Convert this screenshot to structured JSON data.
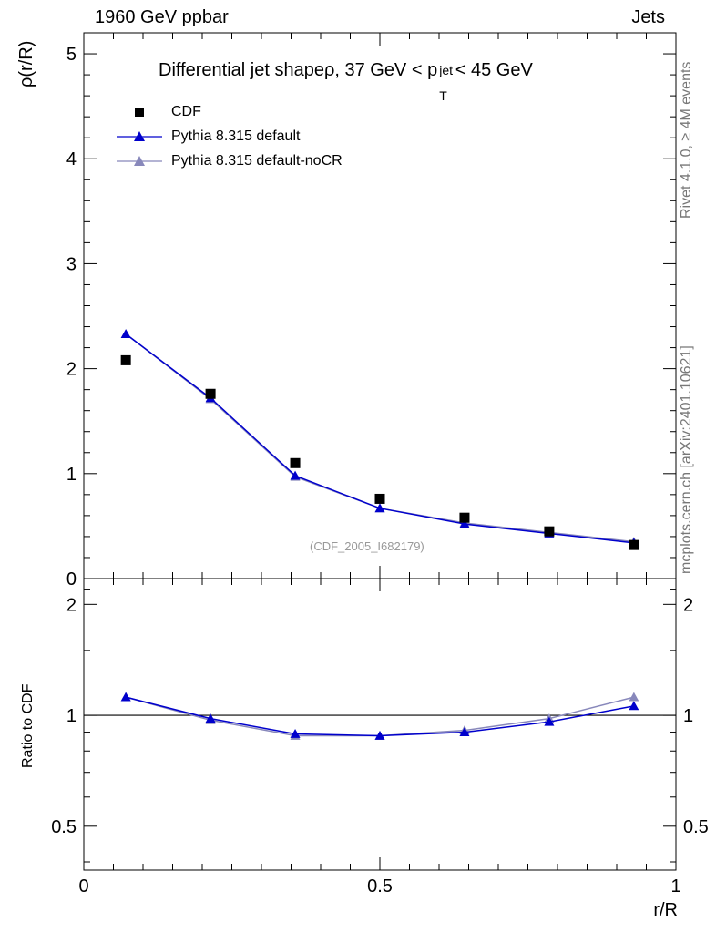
{
  "header": {
    "left": "1960 GeV ppbar",
    "right": "Jets"
  },
  "title": {
    "prefix": "Differential jet shapeρ, 37 GeV < p",
    "sup": "jet",
    "sub": "T",
    "suffix": " < 45 GeV"
  },
  "side_labels": {
    "upper": "Rivet 4.1.0, ≥ 4M events",
    "lower": "mcplots.cern.ch [arXiv:2401.10621]"
  },
  "watermark": "(CDF_2005_I682179)",
  "colors": {
    "data": "#000000",
    "pythia_default": "#0000cc",
    "pythia_nocr": "#8888bb"
  },
  "chart_data": [
    {
      "type": "scatter",
      "ylabel": "ρ(r/R)",
      "xlabel": "r/R",
      "xlim": [
        0,
        1
      ],
      "ylim": [
        0,
        5.2
      ],
      "y_ticks": [
        0,
        1,
        2,
        3,
        4,
        5
      ],
      "y_tick_labels": [
        "0",
        "1",
        "2",
        "3",
        "4",
        "5"
      ],
      "x": [
        0.071,
        0.214,
        0.357,
        0.5,
        0.643,
        0.786,
        0.929
      ],
      "series": [
        {
          "name": "CDF",
          "marker": "square",
          "values": [
            2.08,
            1.76,
            1.1,
            0.76,
            0.58,
            0.45,
            0.32
          ]
        },
        {
          "name": "Pythia 8.315 default",
          "marker": "triangle",
          "values": [
            2.33,
            1.72,
            0.98,
            0.67,
            0.52,
            0.43,
            0.34
          ]
        },
        {
          "name": "Pythia 8.315 default-noCR",
          "marker": "triangle",
          "values": [
            2.33,
            1.71,
            0.97,
            0.67,
            0.53,
            0.44,
            0.35
          ]
        }
      ]
    },
    {
      "type": "line",
      "ylabel": "Ratio to CDF",
      "xlabel": "r/R",
      "xlim": [
        0,
        1
      ],
      "x_ticks": [
        0,
        0.5,
        1
      ],
      "x_tick_labels": [
        "0",
        "0.5",
        "1"
      ],
      "y_scale": "log",
      "ylim": [
        0.38,
        2.35
      ],
      "y_ticks": [
        0.5,
        1,
        2
      ],
      "y_tick_labels": [
        "0.5",
        "1",
        "2"
      ],
      "reference_line": 1,
      "x": [
        0.071,
        0.214,
        0.357,
        0.5,
        0.643,
        0.786,
        0.929
      ],
      "series": [
        {
          "name": "Pythia 8.315 default",
          "values": [
            1.12,
            0.98,
            0.89,
            0.88,
            0.9,
            0.96,
            1.06
          ]
        },
        {
          "name": "Pythia 8.315 default-noCR",
          "values": [
            1.12,
            0.97,
            0.88,
            0.88,
            0.91,
            0.98,
            1.12
          ]
        }
      ]
    }
  ]
}
